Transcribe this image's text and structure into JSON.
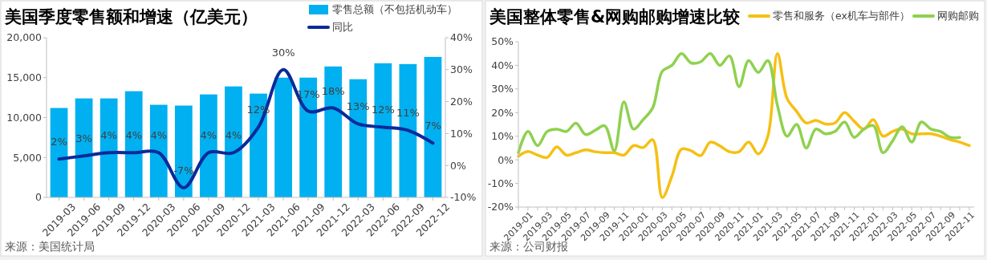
{
  "chart_data": [
    {
      "type": "bar",
      "title": "美国季度零售额和增速（亿美元）",
      "categories": [
        "2019-03",
        "2019-06",
        "2019-09",
        "2019-12",
        "2020-03",
        "2020-06",
        "2020-09",
        "2020-12",
        "2021-03",
        "2021-06",
        "2021-09",
        "2021-12",
        "2022-03",
        "2022-06",
        "2022-09",
        "2022-12"
      ],
      "series": [
        {
          "name": "零售总额（不包括机动车）",
          "type": "bar",
          "color": "#00b0f0",
          "values": [
            11200,
            12400,
            12400,
            13300,
            11600,
            11500,
            12900,
            13900,
            13000,
            15000,
            15000,
            16400,
            14800,
            16800,
            16700,
            17600
          ]
        },
        {
          "name": "同比",
          "type": "line",
          "axis": "y2",
          "color": "#0a2a9a",
          "values": [
            2,
            3,
            4,
            4,
            4,
            -7,
            4,
            4,
            12,
            30,
            17,
            18,
            13,
            12,
            11,
            7
          ],
          "value_labels": [
            "2%",
            "3%",
            "4%",
            "4%",
            "4%",
            "-7%",
            "4%",
            "4%",
            "12%",
            "30%",
            "17%",
            "18%",
            "13%",
            "12%",
            "11%",
            "7%"
          ]
        }
      ],
      "ylim": [
        0,
        20000
      ],
      "yticks": [
        0,
        {
          "value": 5000,
          "label": "5,000"
        },
        {
          "value": 10000,
          "label": "10,000"
        },
        {
          "value": 15000,
          "label": "15,000"
        },
        {
          "value": 20000,
          "label": "20,000"
        }
      ],
      "y2lim": [
        -10,
        40
      ],
      "y2ticks": [
        {
          "value": -10,
          "label": "-10%"
        },
        {
          "value": 0,
          "label": "0%"
        },
        {
          "value": 10,
          "label": "10%"
        },
        {
          "value": 20,
          "label": "20%"
        },
        {
          "value": 30,
          "label": "30%"
        },
        {
          "value": 40,
          "label": "40%"
        }
      ],
      "legend": "top right",
      "grid": false,
      "annotations": [
        "来源：美国统计局"
      ]
    },
    {
      "type": "line",
      "title": "美国整体零售&网购邮购增速比较",
      "categories": [
        "2019-01",
        null,
        "2019-03",
        null,
        "2019-05",
        null,
        "2019-07",
        null,
        "2019-09",
        null,
        "2019-11",
        null,
        "2020-01",
        null,
        "2020-03",
        null,
        "2020-05",
        null,
        "2020-07",
        null,
        "2020-09",
        null,
        "2020-11",
        null,
        "2021-01",
        null,
        "2021-03",
        null,
        "2021-05",
        null,
        "2021-07",
        null,
        "2021-09",
        null,
        "2021-11",
        null,
        "2022-01",
        null,
        "2022-03",
        null,
        "2022-05",
        null,
        "2022-07",
        null,
        "2022-09",
        null,
        "2022-11",
        null
      ],
      "series": [
        {
          "name": "零售和服务（ex机车与部件）",
          "color": "#f5c013",
          "values": [
            1.5,
            3.5,
            2,
            1,
            5.5,
            2,
            3,
            4.2,
            3.4,
            3,
            3,
            2,
            6,
            5.2,
            8.5,
            -16,
            -7,
            4.5,
            3.8,
            1.8,
            7.5,
            5.9,
            3.4,
            3.4,
            7.5,
            2.5,
            10,
            45,
            26,
            20.5,
            15.6,
            16.7,
            15.2,
            15.6,
            20,
            16.3,
            13,
            17,
            10,
            12,
            13,
            11,
            11,
            11,
            10,
            8.5,
            7.5,
            6
          ]
        },
        {
          "name": "网购邮购",
          "color": "#8fd14f",
          "values": [
            3,
            12,
            6,
            12,
            13,
            12,
            15.5,
            10.7,
            12.5,
            14.4,
            3.8,
            24.5,
            13,
            17,
            22,
            37.5,
            40,
            45,
            41,
            41.5,
            45,
            40,
            44,
            31,
            42,
            37,
            42,
            23,
            10,
            15,
            5,
            13,
            11,
            12,
            16,
            9.5,
            13,
            14.5,
            3,
            8,
            14,
            7.5,
            16,
            13,
            12,
            9.5,
            9.5,
            null
          ]
        }
      ],
      "ylim": [
        -20,
        50
      ],
      "yticks": [
        {
          "value": -20,
          "label": "-20%"
        },
        {
          "value": -10,
          "label": "-10%"
        },
        {
          "value": 0,
          "label": "0%"
        },
        {
          "value": 10,
          "label": "10%"
        },
        {
          "value": 20,
          "label": "20%"
        },
        {
          "value": 30,
          "label": "30%"
        },
        {
          "value": 40,
          "label": "40%"
        },
        {
          "value": 50,
          "label": "50%"
        }
      ],
      "legend": "top right",
      "grid": false,
      "annotations": [
        "来源：公司财报"
      ]
    }
  ]
}
